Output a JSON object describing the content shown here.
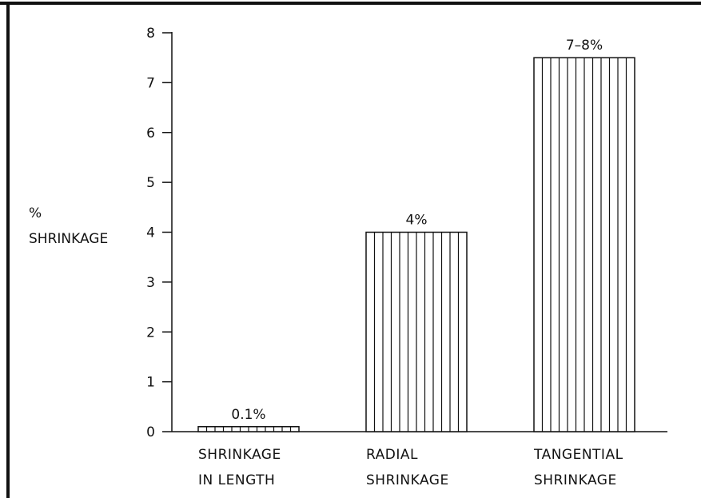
{
  "chart_data": {
    "type": "bar",
    "ylabel_lines": [
      "%",
      "SHRINKAGE"
    ],
    "ylim": [
      0,
      8
    ],
    "yticks": [
      0,
      1,
      2,
      3,
      4,
      5,
      6,
      7,
      8
    ],
    "categories": [
      [
        "SHRINKAGE",
        "IN LENGTH"
      ],
      [
        "RADIAL",
        "SHRINKAGE"
      ],
      [
        "TANGENTIAL",
        "SHRINKAGE"
      ]
    ],
    "values": [
      0.1,
      4,
      7.5
    ],
    "data_labels": [
      "0.1%",
      "4%",
      "7–8%"
    ],
    "grid": false,
    "bar_fill": "vertical-hatch",
    "colors": {
      "ink": "#111111",
      "background": "#ffffff"
    }
  }
}
